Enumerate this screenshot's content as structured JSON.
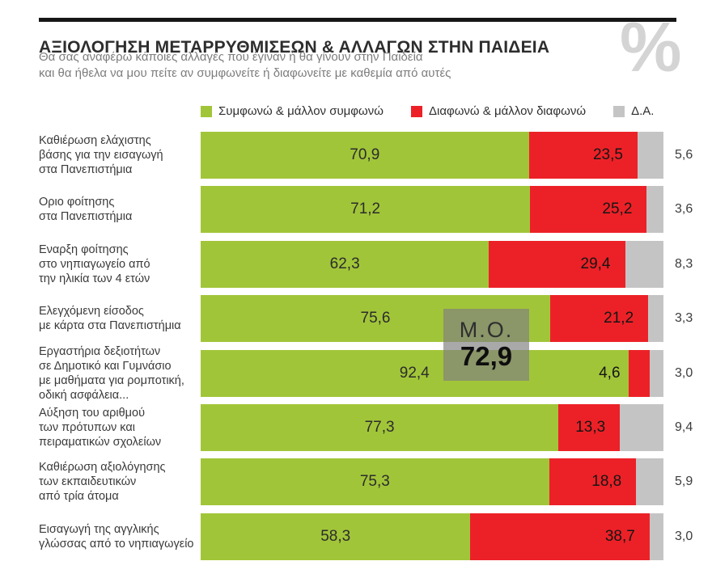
{
  "header": {
    "title": "ΑΞΙΟΛΟΓΗΣΗ ΜΕΤΑΡΡΥΘΜΙΣΕΩΝ & ΑΛΛΑΓΩΝ ΣΤΗΝ ΠΑΙΔΕΙΑ",
    "subtitle": "Θα σας αναφέρω κάποιες αλλαγές που έγιναν ή θα γίνουν στην Παιδεία\nκαι θα ήθελα να μου πείτε αν συμφωνείτε ή διαφωνείτε με καθεμία από αυτές",
    "watermark": "%"
  },
  "colors": {
    "agree": "#a1c539",
    "disagree": "#ec2127",
    "dk": "#c4c4c4",
    "rule": "#161616",
    "watermark": "#d4d4d4",
    "average_overlay": "rgba(128,128,128,0.68)"
  },
  "legend": [
    {
      "name": "agree",
      "label": "Συμφωνώ & μάλλον συμφωνώ",
      "color": "#a1c539"
    },
    {
      "name": "disagree",
      "label": "Διαφωνώ & μάλλον διαφωνώ",
      "color": "#ec2127"
    },
    {
      "name": "dk",
      "label": "Δ.Α.",
      "color": "#c4c4c4"
    }
  ],
  "average": {
    "label": "Μ.Ο.",
    "value": "72,9"
  },
  "rows": [
    {
      "label_lines": "Καθιέρωση ελάχιστης\nβάσης για την εισαγωγή\nστα Πανεπιστήμια",
      "agree": 70.9,
      "disagree": 23.5,
      "dk": 5.6,
      "agree_label": "70,9",
      "disagree_label": "23,5",
      "dk_label": "5,6",
      "disagree_label_outside": false
    },
    {
      "label_lines": "Οριο φοίτησης\nστα Πανεπιστήμια",
      "agree": 71.2,
      "disagree": 25.2,
      "dk": 3.6,
      "agree_label": "71,2",
      "disagree_label": "25,2",
      "dk_label": "3,6",
      "disagree_label_outside": false
    },
    {
      "label_lines": "Εναρξη φοίτησης\nστο νηπιαγωγείο από\nτην ηλικία των 4 ετών",
      "agree": 62.3,
      "disagree": 29.4,
      "dk": 8.3,
      "agree_label": "62,3",
      "disagree_label": "29,4",
      "dk_label": "8,3",
      "disagree_label_outside": false
    },
    {
      "label_lines": "Ελεγχόμενη είσοδος\nμε κάρτα στα Πανεπιστήμια",
      "agree": 75.6,
      "disagree": 21.2,
      "dk": 3.3,
      "agree_label": "75,6",
      "disagree_label": "21,2",
      "dk_label": "3,3",
      "disagree_label_outside": false
    },
    {
      "label_lines": "Εργαστήρια δεξιοτήτων\nσε Δημοτικό και Γυμνάσιο\nμε μαθήματα για ρομποτική,\nοδική ασφάλεια...",
      "agree": 92.4,
      "disagree": 4.6,
      "dk": 3.0,
      "agree_label": "92,4",
      "disagree_label": "4,6",
      "dk_label": "3,0",
      "disagree_label_outside": true
    },
    {
      "label_lines": "Αύξηση του αριθμού\nτων πρότυπων και\nπειραματικών σχολείων",
      "agree": 77.3,
      "disagree": 13.3,
      "dk": 9.4,
      "agree_label": "77,3",
      "disagree_label": "13,3",
      "dk_label": "9,4",
      "disagree_label_outside": false
    },
    {
      "label_lines": "Καθιέρωση αξιολόγησης\nτων εκπαιδευτικών\nαπό τρία άτομα",
      "agree": 75.3,
      "disagree": 18.8,
      "dk": 5.9,
      "agree_label": "75,3",
      "disagree_label": "18,8",
      "dk_label": "5,9",
      "disagree_label_outside": false
    },
    {
      "label_lines": "Εισαγωγή της αγγλικής\nγλώσσας από το νηπιαγωγείο",
      "agree": 58.3,
      "disagree": 38.7,
      "dk": 3.0,
      "agree_label": "58,3",
      "disagree_label": "38,7",
      "dk_label": "3,0",
      "disagree_label_outside": false
    }
  ],
  "chart_data": {
    "type": "bar",
    "orientation": "horizontal",
    "stacked": true,
    "title": "ΑΞΙΟΛΟΓΗΣΗ ΜΕΤΑΡΡΥΘΜΙΣΕΩΝ & ΑΛΛΑΓΩΝ ΣΤΗΝ ΠΑΙΔΕΙΑ",
    "subtitle": "Θα σας αναφέρω κάποιες αλλαγές που έγιναν ή θα γίνουν στην Παιδεία και θα ήθελα να μου πείτε αν συμφωνείτε ή διαφωνείτε με καθεμία από αυτές",
    "unit": "%",
    "xlim": [
      0,
      100
    ],
    "legend_position": "top",
    "grid": false,
    "categories": [
      "Καθιέρωση ελάχιστης βάσης για την εισαγωγή στα Πανεπιστήμια",
      "Οριο φοίτησης στα Πανεπιστήμια",
      "Εναρξη φοίτησης στο νηπιαγωγείο από την ηλικία των 4 ετών",
      "Ελεγχόμενη είσοδος με κάρτα στα Πανεπιστήμια",
      "Εργαστήρια δεξιοτήτων σε Δημοτικό και Γυμνάσιο με μαθήματα για ρομποτική, οδική ασφάλεια...",
      "Αύξηση του αριθμού των πρότυπων και πειραματικών σχολείων",
      "Καθιέρωση αξιολόγησης των εκπαιδευτικών από τρία άτομα",
      "Εισαγωγή της αγγλικής γλώσσας από το νηπιαγωγείο"
    ],
    "series": [
      {
        "name": "Συμφωνώ & μάλλον συμφωνώ",
        "color": "#a1c539",
        "values": [
          70.9,
          71.2,
          62.3,
          75.6,
          92.4,
          77.3,
          75.3,
          58.3
        ]
      },
      {
        "name": "Διαφωνώ & μάλλον διαφωνώ",
        "color": "#ec2127",
        "values": [
          23.5,
          25.2,
          29.4,
          21.2,
          4.6,
          13.3,
          18.8,
          38.7
        ]
      },
      {
        "name": "Δ.Α.",
        "color": "#c4c4c4",
        "values": [
          5.6,
          3.6,
          8.3,
          3.3,
          3.0,
          9.4,
          5.9,
          3.0
        ]
      }
    ],
    "annotations": [
      {
        "text": "Μ.Ο. 72,9",
        "meaning": "average of agree series",
        "value": 72.9
      }
    ]
  }
}
